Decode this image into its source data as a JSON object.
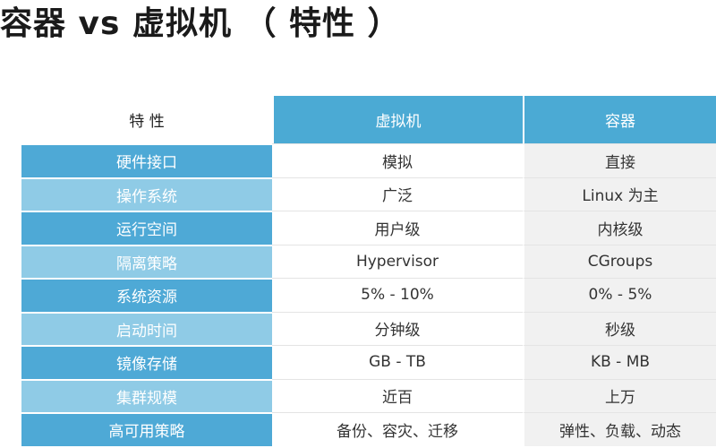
{
  "title": "容器 vs 虚拟机 （ 特性 ）",
  "table": {
    "headers": [
      "特 性",
      "虚拟机",
      "容器"
    ],
    "rows": [
      {
        "feature": "硬件接口",
        "vm": "模拟",
        "container": "直接"
      },
      {
        "feature": "操作系统",
        "vm": "广泛",
        "container": "Linux 为主"
      },
      {
        "feature": "运行空间",
        "vm": "用户级",
        "container": "内核级"
      },
      {
        "feature": "隔离策略",
        "vm": "Hypervisor",
        "container": "CGroups"
      },
      {
        "feature": "系统资源",
        "vm": "5% - 10%",
        "container": "0% - 5%"
      },
      {
        "feature": "启动时间",
        "vm": "分钟级",
        "container": "秒级"
      },
      {
        "feature": "镜像存储",
        "vm": "GB - TB",
        "container": "KB - MB"
      },
      {
        "feature": "集群规模",
        "vm": "近百",
        "container": "上万"
      },
      {
        "feature": "高可用策略",
        "vm": "备份、容灾、迁移",
        "container": "弹性、负载、动态"
      }
    ]
  },
  "colors": {
    "header_blue": "#4baad4",
    "row_dark": "#4ea9d6",
    "row_light": "#8fcbe6",
    "alt_cell": "#f1f1f1"
  }
}
